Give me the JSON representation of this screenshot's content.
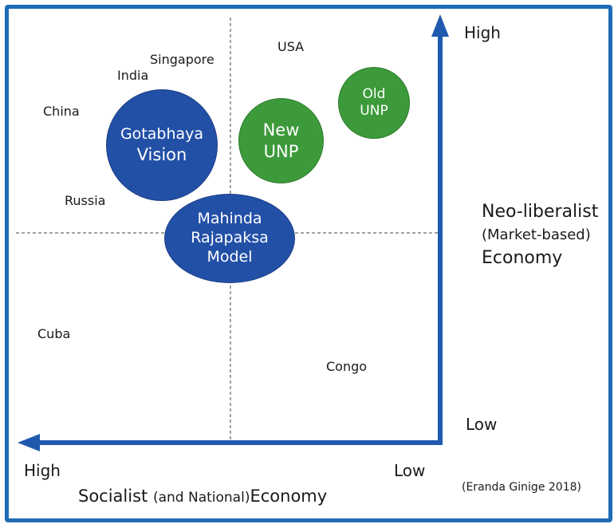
{
  "quadrant_labels": {
    "vertical_high": "High",
    "vertical_low": "Low",
    "horizontal_high": "High",
    "horizontal_low": "Low"
  },
  "vertical_axis_title": {
    "line1": "Neo-liberalist",
    "line2": "(Market-based)",
    "line3": "Economy"
  },
  "horizontal_axis_title": {
    "part1": "Socialist",
    "part2": "(and National)",
    "part3": "Economy"
  },
  "citation": "(Eranda Ginige 2018)",
  "countries": {
    "singapore": "Singapore",
    "usa": "USA",
    "india": "India",
    "china": "China",
    "russia": "Russia",
    "cuba": "Cuba",
    "congo": "Congo"
  },
  "circles": {
    "gotabhaya": {
      "line1": "Gotabhaya",
      "line2": "Vision",
      "color": "#2350a7"
    },
    "mahinda": {
      "line1": "Mahinda",
      "line2": "Rajapaksa",
      "line3": "Model",
      "color": "#2350a7"
    },
    "new_unp": {
      "line1": "New",
      "line2": "UNP",
      "color": "#3c9a3a"
    },
    "old_unp": {
      "line1": "Old",
      "line2": "UNP",
      "color": "#3c9a3a"
    }
  },
  "colors": {
    "frame": "#1f6bb5",
    "axis_arrows": "#1f5aae",
    "dashed_lines": "#444444"
  }
}
